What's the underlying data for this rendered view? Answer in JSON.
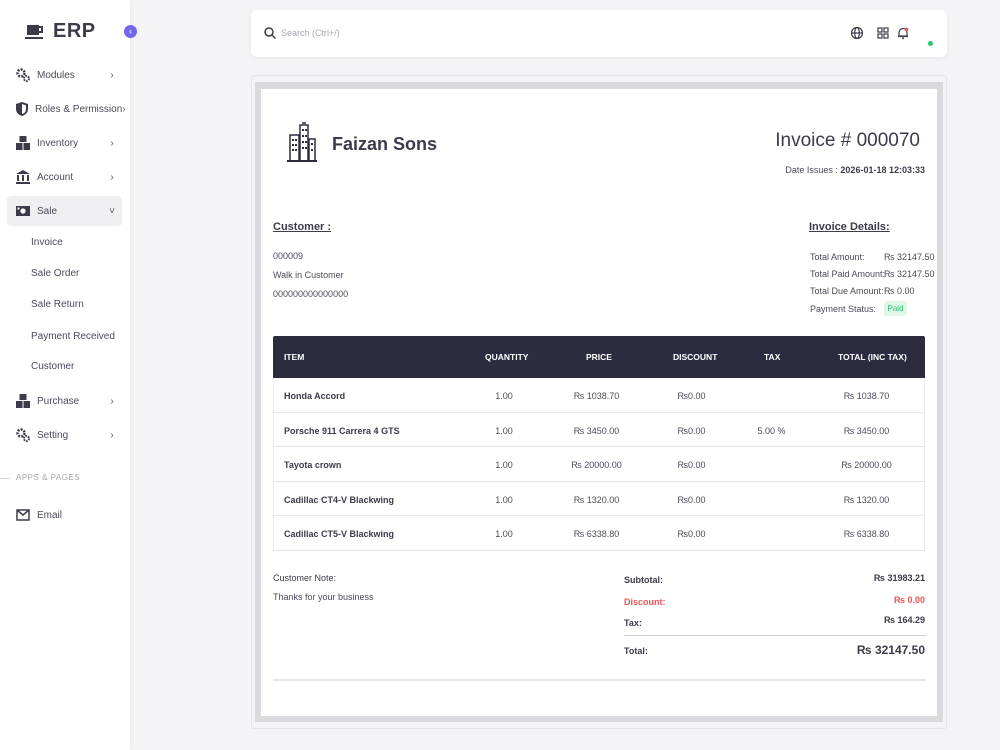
{
  "app": {
    "brand": "ERP"
  },
  "sidebar": {
    "items": [
      {
        "label": "Modules",
        "icon": "gears-icon"
      },
      {
        "label": "Roles & Permission",
        "icon": "shield-icon"
      },
      {
        "label": "Inventory",
        "icon": "boxes-icon"
      },
      {
        "label": "Account",
        "icon": "bank-icon"
      },
      {
        "label": "Sale",
        "icon": "money-icon",
        "expanded": true
      },
      {
        "label": "Purchase",
        "icon": "boxes-icon"
      },
      {
        "label": "Setting",
        "icon": "gears-icon"
      }
    ],
    "sale_subitems": [
      "Invoice",
      "Sale Order",
      "Sale Return",
      "Payment Received",
      "Customer"
    ],
    "section_title": "APPS & PAGES",
    "email_label": "Email"
  },
  "search": {
    "placeholder": "Search (Ctrl+/)"
  },
  "invoice": {
    "company": "Faizan Sons",
    "number_label": "Invoice # ",
    "number": "000070",
    "date_label": "Date Issues : ",
    "date": "2026-01-18 12:03:33",
    "customer": {
      "title": "Customer :",
      "id": "000009",
      "name": "Walk in Customer",
      "phone": "000000000000000"
    },
    "details": {
      "title": "Invoice Details:",
      "total_amount_label": "Total Amount:",
      "total_amount": "₨ 32147.50",
      "total_paid_label": "Total Paid Amount:",
      "total_paid": "₨ 32147.50",
      "total_due_label": "Total Due Amount:",
      "total_due": "₨ 0.00",
      "status_label": "Payment Status:",
      "status": "Paid"
    },
    "table": {
      "headers": [
        "ITEM",
        "QUANTITY",
        "PRICE",
        "DISCOUNT",
        "TAX",
        "TOTAL (INC TAX)"
      ],
      "rows": [
        {
          "item": "Honda Accord",
          "qty": "1.00",
          "price": "₨ 1038.70",
          "discount": "₨0.00",
          "tax": "",
          "total": "₨ 1038.70"
        },
        {
          "item": "Porsche 911 Carrera 4 GTS",
          "qty": "1.00",
          "price": "₨ 3450.00",
          "discount": "₨0.00",
          "tax": "5.00 %",
          "total": "₨ 3450.00"
        },
        {
          "item": "Tayota crown",
          "qty": "1.00",
          "price": "₨ 20000.00",
          "discount": "₨0.00",
          "tax": "",
          "total": "₨ 20000.00"
        },
        {
          "item": "Cadillac CT4-V Blackwing",
          "qty": "1.00",
          "price": "₨ 1320.00",
          "discount": "₨0.00",
          "tax": "",
          "total": "₨ 1320.00"
        },
        {
          "item": "Cadillac CT5-V Blackwing",
          "qty": "1.00",
          "price": "₨ 6338.80",
          "discount": "₨0.00",
          "tax": "",
          "total": "₨ 6338.80"
        }
      ]
    },
    "note": {
      "label": "Customer Note:",
      "text": "Thanks for your business"
    },
    "summary": {
      "subtotal_label": "Subtotal:",
      "subtotal": "₨ 31983.21",
      "discount_label": "Discount:",
      "discount": "₨ 0.00",
      "tax_label": "Tax:",
      "tax": "₨ 164.29",
      "total_label": "Total:",
      "total": "₨ 32147.50"
    }
  },
  "colors": {
    "accent": "#7367f0",
    "table_header": "#2b2c40",
    "danger": "#ea5455",
    "success": "#28c76f"
  }
}
